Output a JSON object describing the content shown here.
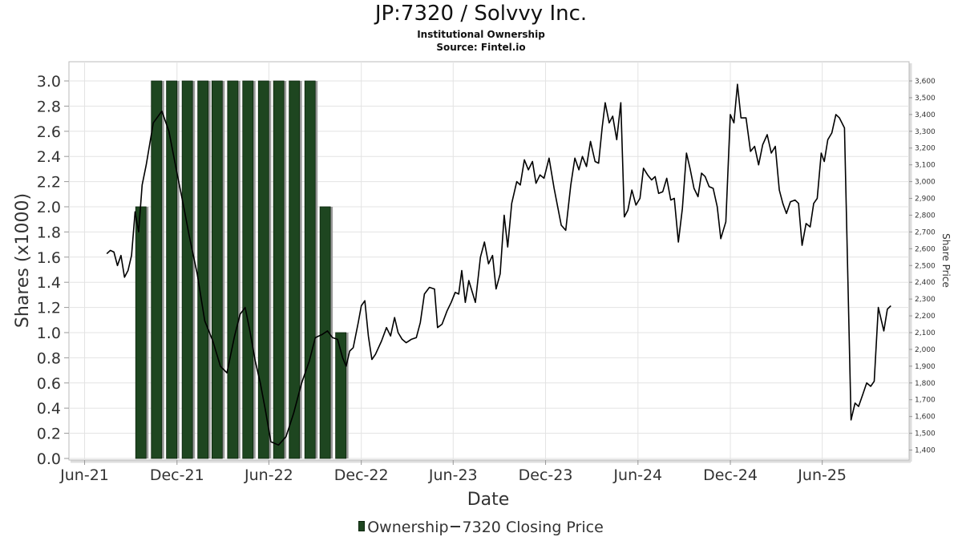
{
  "chart_data": {
    "type": "bar",
    "title": "JP:7320 / Solvvy Inc.",
    "subtitle": "Institutional Ownership",
    "source": "Source: Fintel.io",
    "xlabel": "Date",
    "ylabel": "Shares (x1000)",
    "y2label": "Share Price",
    "ylim": [
      0,
      3.0
    ],
    "y2lim": [
      1350,
      3600
    ],
    "y_ticks": [
      "0.0",
      "0.2",
      "0.4",
      "0.6",
      "0.8",
      "1.0",
      "1.2",
      "1.4",
      "1.6",
      "1.8",
      "2.0",
      "2.2",
      "2.4",
      "2.6",
      "2.8",
      "3.0"
    ],
    "y2_ticks": [
      "1,400",
      "1,500",
      "1,600",
      "1,700",
      "1,800",
      "1,900",
      "2,000",
      "2,100",
      "2,200",
      "2,300",
      "2,400",
      "2,500",
      "2,600",
      "2,700",
      "2,800",
      "2,900",
      "3,000",
      "3,100",
      "3,200",
      "3,300",
      "3,400",
      "3,500",
      "3,600"
    ],
    "x_ticks": [
      "Jun-21",
      "Dec-21",
      "Jun-22",
      "Dec-22",
      "Jun-23",
      "Dec-23",
      "Jun-24",
      "Dec-24",
      "Jun-25"
    ],
    "grid": true,
    "legend_position": "bottom",
    "series": [
      {
        "name": "Ownership",
        "kind": "bar",
        "color": "#1e4620",
        "x": [
          "2021-09-30",
          "2021-10-31",
          "2021-11-30",
          "2021-12-31",
          "2022-01-31",
          "2022-02-28",
          "2022-03-31",
          "2022-04-30",
          "2022-05-31",
          "2022-06-30",
          "2022-07-31",
          "2022-08-31",
          "2022-09-30",
          "2022-10-31"
        ],
        "values": [
          2.0,
          3.0,
          3.0,
          3.0,
          3.0,
          3.0,
          3.0,
          3.0,
          3.0,
          3.0,
          3.0,
          3.0,
          2.0,
          1.0
        ]
      },
      {
        "name": "7320 Closing Price",
        "kind": "line",
        "color": "#000000",
        "points": [
          [
            "2021-07-15",
            2570
          ],
          [
            "2021-07-22",
            2590
          ],
          [
            "2021-07-29",
            2580
          ],
          [
            "2021-08-05",
            2500
          ],
          [
            "2021-08-12",
            2560
          ],
          [
            "2021-08-19",
            2430
          ],
          [
            "2021-08-26",
            2470
          ],
          [
            "2021-09-02",
            2560
          ],
          [
            "2021-09-09",
            2820
          ],
          [
            "2021-09-16",
            2700
          ],
          [
            "2021-09-23",
            2980
          ],
          [
            "2021-10-01",
            3100
          ],
          [
            "2021-10-15",
            3350
          ],
          [
            "2021-11-01",
            3420
          ],
          [
            "2021-11-15",
            3300
          ],
          [
            "2021-12-01",
            3050
          ],
          [
            "2021-12-15",
            2840
          ],
          [
            "2021-12-25",
            2680
          ],
          [
            "2022-01-10",
            2450
          ],
          [
            "2022-01-25",
            2170
          ],
          [
            "2022-02-10",
            2050
          ],
          [
            "2022-02-25",
            1900
          ],
          [
            "2022-03-10",
            1860
          ],
          [
            "2022-03-25",
            2080
          ],
          [
            "2022-04-05",
            2210
          ],
          [
            "2022-04-15",
            2250
          ],
          [
            "2022-04-25",
            2100
          ],
          [
            "2022-05-05",
            1930
          ],
          [
            "2022-05-15",
            1800
          ],
          [
            "2022-05-25",
            1640
          ],
          [
            "2022-06-05",
            1450
          ],
          [
            "2022-06-20",
            1430
          ],
          [
            "2022-07-05",
            1480
          ],
          [
            "2022-07-20",
            1620
          ],
          [
            "2022-08-05",
            1800
          ],
          [
            "2022-08-20",
            1930
          ],
          [
            "2022-09-01",
            2070
          ],
          [
            "2022-09-15",
            2090
          ],
          [
            "2022-09-25",
            2110
          ],
          [
            "2022-10-05",
            2070
          ],
          [
            "2022-10-15",
            2060
          ],
          [
            "2022-10-25",
            1950
          ],
          [
            "2022-11-01",
            1900
          ],
          [
            "2022-11-08",
            1990
          ],
          [
            "2022-11-15",
            2010
          ],
          [
            "2022-11-25",
            2160
          ],
          [
            "2022-12-01",
            2260
          ],
          [
            "2022-12-08",
            2290
          ],
          [
            "2022-12-15",
            2080
          ],
          [
            "2022-12-22",
            1940
          ],
          [
            "2022-12-29",
            1970
          ],
          [
            "2023-01-10",
            2050
          ],
          [
            "2023-01-20",
            2130
          ],
          [
            "2023-01-28",
            2080
          ],
          [
            "2023-02-05",
            2190
          ],
          [
            "2023-02-12",
            2100
          ],
          [
            "2023-02-20",
            2060
          ],
          [
            "2023-02-28",
            2040
          ],
          [
            "2023-03-10",
            2060
          ],
          [
            "2023-03-20",
            2070
          ],
          [
            "2023-03-28",
            2160
          ],
          [
            "2023-04-05",
            2330
          ],
          [
            "2023-04-15",
            2370
          ],
          [
            "2023-04-25",
            2360
          ],
          [
            "2023-05-01",
            2130
          ],
          [
            "2023-05-10",
            2150
          ],
          [
            "2023-05-20",
            2230
          ],
          [
            "2023-05-28",
            2280
          ],
          [
            "2023-06-05",
            2340
          ],
          [
            "2023-06-12",
            2330
          ],
          [
            "2023-06-18",
            2470
          ],
          [
            "2023-06-25",
            2280
          ],
          [
            "2023-07-02",
            2410
          ],
          [
            "2023-07-15",
            2280
          ],
          [
            "2023-07-25",
            2550
          ],
          [
            "2023-08-02",
            2640
          ],
          [
            "2023-08-10",
            2510
          ],
          [
            "2023-08-18",
            2560
          ],
          [
            "2023-08-25",
            2360
          ],
          [
            "2023-09-02",
            2450
          ],
          [
            "2023-09-10",
            2800
          ],
          [
            "2023-09-17",
            2610
          ],
          [
            "2023-09-25",
            2870
          ],
          [
            "2023-10-05",
            3000
          ],
          [
            "2023-10-12",
            2980
          ],
          [
            "2023-10-20",
            3130
          ],
          [
            "2023-10-28",
            3070
          ],
          [
            "2023-11-05",
            3120
          ],
          [
            "2023-11-12",
            2990
          ],
          [
            "2023-11-20",
            3040
          ],
          [
            "2023-11-28",
            3020
          ],
          [
            "2023-12-08",
            3140
          ],
          [
            "2023-12-18",
            2960
          ],
          [
            "2024-01-01",
            2740
          ],
          [
            "2024-01-10",
            2710
          ],
          [
            "2024-01-20",
            2980
          ],
          [
            "2024-01-28",
            3140
          ],
          [
            "2024-02-05",
            3070
          ],
          [
            "2024-02-12",
            3150
          ],
          [
            "2024-02-20",
            3090
          ],
          [
            "2024-02-28",
            3240
          ],
          [
            "2024-03-08",
            3120
          ],
          [
            "2024-03-15",
            3110
          ],
          [
            "2024-03-22",
            3320
          ],
          [
            "2024-03-28",
            3470
          ],
          [
            "2024-04-05",
            3350
          ],
          [
            "2024-04-12",
            3390
          ],
          [
            "2024-04-20",
            3250
          ],
          [
            "2024-04-28",
            3470
          ],
          [
            "2024-05-05",
            2790
          ],
          [
            "2024-05-12",
            2830
          ],
          [
            "2024-05-20",
            2950
          ],
          [
            "2024-05-28",
            2860
          ],
          [
            "2024-06-05",
            2900
          ],
          [
            "2024-06-12",
            3080
          ],
          [
            "2024-06-20",
            3040
          ],
          [
            "2024-06-28",
            3010
          ],
          [
            "2024-07-05",
            3030
          ],
          [
            "2024-07-12",
            2930
          ],
          [
            "2024-07-20",
            2940
          ],
          [
            "2024-07-28",
            3020
          ],
          [
            "2024-08-05",
            2890
          ],
          [
            "2024-08-12",
            2900
          ],
          [
            "2024-08-20",
            2640
          ],
          [
            "2024-08-28",
            2840
          ],
          [
            "2024-09-05",
            3170
          ],
          [
            "2024-09-12",
            3080
          ],
          [
            "2024-09-20",
            2960
          ],
          [
            "2024-09-28",
            2910
          ],
          [
            "2024-10-05",
            3050
          ],
          [
            "2024-10-12",
            3030
          ],
          [
            "2024-10-20",
            2970
          ],
          [
            "2024-10-28",
            2960
          ],
          [
            "2024-11-05",
            2850
          ],
          [
            "2024-11-12",
            2660
          ],
          [
            "2024-11-22",
            2760
          ],
          [
            "2024-12-01",
            3400
          ],
          [
            "2024-12-08",
            3350
          ],
          [
            "2024-12-15",
            3580
          ],
          [
            "2024-12-22",
            3380
          ],
          [
            "2025-01-01",
            3380
          ],
          [
            "2025-01-10",
            3180
          ],
          [
            "2025-01-18",
            3210
          ],
          [
            "2025-01-26",
            3100
          ],
          [
            "2025-02-03",
            3220
          ],
          [
            "2025-02-12",
            3280
          ],
          [
            "2025-02-20",
            3170
          ],
          [
            "2025-02-28",
            3210
          ],
          [
            "2025-03-08",
            2950
          ],
          [
            "2025-03-15",
            2870
          ],
          [
            "2025-03-22",
            2810
          ],
          [
            "2025-03-30",
            2880
          ],
          [
            "2025-04-08",
            2890
          ],
          [
            "2025-04-15",
            2870
          ],
          [
            "2025-04-22",
            2620
          ],
          [
            "2025-04-30",
            2750
          ],
          [
            "2025-05-08",
            2730
          ],
          [
            "2025-05-15",
            2870
          ],
          [
            "2025-05-22",
            2900
          ],
          [
            "2025-05-30",
            3170
          ],
          [
            "2025-06-05",
            3120
          ],
          [
            "2025-06-12",
            3250
          ],
          [
            "2025-06-20",
            3290
          ],
          [
            "2025-06-28",
            3400
          ],
          [
            "2025-07-05",
            3380
          ],
          [
            "2025-07-15",
            3320
          ],
          [
            "2025-07-28",
            1580
          ],
          [
            "2025-08-05",
            1680
          ],
          [
            "2025-08-12",
            1660
          ],
          [
            "2025-08-20",
            1730
          ],
          [
            "2025-08-28",
            1800
          ],
          [
            "2025-09-05",
            1780
          ],
          [
            "2025-09-12",
            1810
          ],
          [
            "2025-09-20",
            2250
          ],
          [
            "2025-10-01",
            2110
          ],
          [
            "2025-10-08",
            2240
          ],
          [
            "2025-10-15",
            2260
          ]
        ]
      }
    ]
  }
}
